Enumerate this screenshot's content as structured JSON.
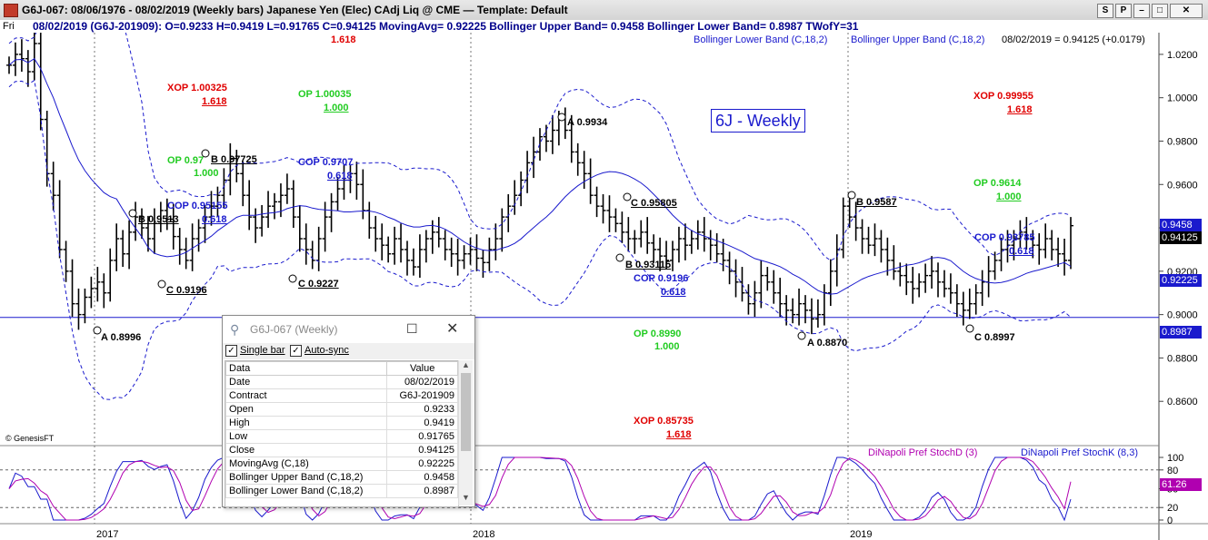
{
  "window": {
    "title": "G6J-067:  08/06/1976 - 08/02/2019  (Weekly bars)   Japanese Yen (Elec) CAdj Liq @ CME  —  Template: Default",
    "buttons": [
      "S",
      "P",
      "–",
      "□",
      "✕"
    ]
  },
  "info_bar": {
    "day": "Fri",
    "text": "08/02/2019 (G6J-201909):  O=0.9233  H=0.9419  L=0.91765  C=0.94125  MovingAvg= 0.92225  Bollinger Upper Band= 0.9458  Bollinger Lower Band= 0.8987  TWofY=31"
  },
  "legends": {
    "boll_lower": "Bollinger Lower Band (C,18,2)",
    "boll_upper": "Bollinger Upper Band (C,18,2)",
    "last": "08/02/2019 = 0.94125 (+0.0179)",
    "stoch_d": "DiNapoli Pref StochD (3)",
    "stoch_k": "DiNapoli Pref StochK (8,3)"
  },
  "chart_label": "6J - Weekly",
  "watermark": "© GenesisFT",
  "annotations": {
    "top_fib": "1.618",
    "xop1": "XOP 1.00325",
    "xop1_ratio": "1.618",
    "op1": "OP 1.00035",
    "op1_ratio": "1.000",
    "op2": "OP 0.97",
    "op2_ratio": "1.000",
    "b1": "B 0.97725",
    "cop1": "COP 0.9707",
    "cop1_ratio": "0.618",
    "b2": "B 0.9513",
    "cop2": "COP 0.95155",
    "cop2_ratio": "0.618",
    "c1": "C 0.9196",
    "c2": "C 0.9227",
    "a1": "A 0.8996",
    "a2": "A 0.9934",
    "c3": "C 0.95805",
    "b3": "B 0.93115",
    "cop3": "COP 0.9196",
    "cop3_ratio": "0.618",
    "op3": "OP 0.8990",
    "op3_ratio": "1.000",
    "xop2": "XOP 0.85735",
    "xop2_ratio": "1.618",
    "a3": "A 0.8870",
    "b4": "B 0.9587",
    "xop3": "XOP 0.99955",
    "xop3_ratio": "1.618",
    "op4": "OP 0.9614",
    "op4_ratio": "1.000",
    "cop4": "COP 0.93785",
    "cop4_ratio": "0.618",
    "c4": "C 0.8997"
  },
  "price_tags": [
    {
      "text": "0.9458",
      "bg": "#1a1acd",
      "fg": "#ffffff"
    },
    {
      "text": "0.94125",
      "bg": "#000000",
      "fg": "#ffffff"
    },
    {
      "text": "0.92225",
      "bg": "#1a1acd",
      "fg": "#ffffff"
    },
    {
      "text": "0.8987",
      "bg": "#1a1acd",
      "fg": "#ffffff"
    },
    {
      "text": "61.26",
      "bg": "#b000b0",
      "fg": "#ffffff"
    }
  ],
  "data_window": {
    "title": "G6J-067 (Weekly)",
    "single_bar_label": "Single bar",
    "auto_sync_label": "Auto-sync",
    "headers": [
      "Data",
      "Value"
    ],
    "rows": [
      [
        "Date",
        "08/02/2019"
      ],
      [
        "Contract",
        "G6J-201909"
      ],
      [
        "Open",
        "0.9233"
      ],
      [
        "High",
        "0.9419"
      ],
      [
        "Low",
        "0.91765"
      ],
      [
        "Close",
        "0.94125"
      ],
      [
        "MovingAvg (C,18)",
        "0.92225"
      ],
      [
        "Bollinger Upper Band (C,18,2)",
        "0.9458"
      ],
      [
        "Bollinger Lower Band (C,18,2)",
        "0.8987"
      ]
    ]
  },
  "chart_data": {
    "type": "line",
    "title": "",
    "price_axis": {
      "ylim": [
        0.84,
        1.03
      ],
      "ticks": [
        "1.0200",
        "1.0000",
        "0.9800",
        "0.9600",
        "0.9400",
        "0.9200",
        "0.9000",
        "0.8800",
        "0.8600"
      ]
    },
    "stoch_axis": {
      "ylim": [
        0,
        100
      ],
      "ticks": [
        "100",
        "80",
        "50",
        "20",
        "0"
      ]
    },
    "x_labels": [
      "2017",
      "2018",
      "2019"
    ],
    "series": [
      {
        "name": "MovingAvg (C,18)",
        "color": "#1a1acd"
      },
      {
        "name": "Bollinger Upper Band (C,18,2)",
        "color": "#1a1acd"
      },
      {
        "name": "Bollinger Lower Band (C,18,2)",
        "color": "#1a1acd"
      },
      {
        "name": "DiNapoli Pref StochD (3)",
        "color": "#b000b0"
      },
      {
        "name": "DiNapoli Pref StochK (8,3)",
        "color": "#1a1acd"
      }
    ],
    "close": [
      1.015,
      1.02,
      1.018,
      1.012,
      1.025,
      0.99,
      0.965,
      0.955,
      0.93,
      0.92,
      0.905,
      0.9,
      0.908,
      0.912,
      0.915,
      0.91,
      0.925,
      0.935,
      0.928,
      0.938,
      0.945,
      0.94,
      0.935,
      0.942,
      0.948,
      0.944,
      0.936,
      0.93,
      0.925,
      0.935,
      0.94,
      0.945,
      0.95,
      0.955,
      0.962,
      0.972,
      0.965,
      0.955,
      0.945,
      0.94,
      0.945,
      0.95,
      0.952,
      0.955,
      0.958,
      0.945,
      0.935,
      0.93,
      0.925,
      0.935,
      0.945,
      0.952,
      0.958,
      0.962,
      0.965,
      0.96,
      0.948,
      0.94,
      0.935,
      0.932,
      0.928,
      0.935,
      0.93,
      0.925,
      0.922,
      0.93,
      0.935,
      0.938,
      0.935,
      0.93,
      0.928,
      0.925,
      0.928,
      0.93,
      0.926,
      0.924,
      0.93,
      0.935,
      0.945,
      0.95,
      0.955,
      0.962,
      0.97,
      0.975,
      0.982,
      0.98,
      0.985,
      0.99,
      0.985,
      0.975,
      0.97,
      0.965,
      0.955,
      0.95,
      0.948,
      0.945,
      0.942,
      0.938,
      0.935,
      0.935,
      0.938,
      0.933,
      0.93,
      0.927,
      0.925,
      0.93,
      0.935,
      0.932,
      0.935,
      0.938,
      0.935,
      0.932,
      0.928,
      0.925,
      0.92,
      0.915,
      0.91,
      0.905,
      0.91,
      0.918,
      0.915,
      0.91,
      0.905,
      0.902,
      0.9,
      0.905,
      0.902,
      0.898,
      0.9,
      0.91,
      0.92,
      0.93,
      0.95,
      0.945,
      0.94,
      0.935,
      0.932,
      0.935,
      0.93,
      0.925,
      0.92,
      0.918,
      0.915,
      0.912,
      0.915,
      0.918,
      0.92,
      0.915,
      0.912,
      0.91,
      0.905,
      0.902,
      0.905,
      0.91,
      0.915,
      0.92,
      0.925,
      0.93,
      0.932,
      0.935,
      0.938,
      0.935,
      0.932,
      0.93,
      0.935,
      0.93,
      0.928,
      0.925,
      0.941
    ],
    "ma_last": 0.92225,
    "upper_last": 0.9458,
    "lower_last": 0.8987,
    "stoch_last": 61.26
  }
}
